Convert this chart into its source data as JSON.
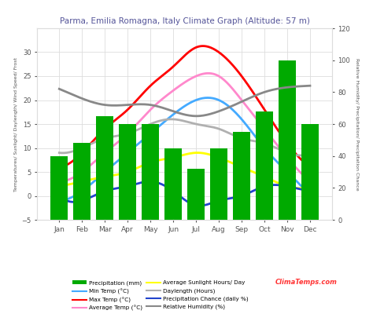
{
  "title": "Parma, Emilia Romagna, Italy Climate Graph (Altitude: 57 m)",
  "months": [
    "Jan",
    "Feb",
    "Mar",
    "Apr",
    "May",
    "Jun",
    "Jul",
    "Aug",
    "Sep",
    "Oct",
    "Nov",
    "Dec"
  ],
  "precipitation_mm": [
    40,
    48,
    65,
    60,
    60,
    45,
    32,
    45,
    55,
    68,
    100,
    60
  ],
  "max_temp": [
    6,
    9,
    14,
    18,
    23,
    27,
    31,
    30,
    25,
    18,
    11,
    6
  ],
  "min_temp": [
    -1,
    1,
    5,
    9,
    13,
    17,
    20,
    20,
    16,
    10,
    5,
    0
  ],
  "avg_temp": [
    3,
    5,
    9,
    13,
    18,
    22,
    25,
    25,
    20,
    14,
    8,
    3
  ],
  "avg_sunlight": [
    2,
    3,
    4,
    5,
    7,
    8,
    9,
    8,
    6,
    4,
    2,
    2
  ],
  "daylength": [
    9,
    10,
    12,
    13,
    15,
    16,
    15,
    14,
    12,
    11,
    9,
    9
  ],
  "precip_chance": [
    8,
    7,
    9,
    10,
    11,
    9,
    6,
    7,
    8,
    10,
    10,
    9
  ],
  "relative_humidity": [
    82,
    76,
    72,
    72,
    72,
    68,
    65,
    68,
    74,
    80,
    83,
    84
  ],
  "bar_color": "#00aa00",
  "max_temp_color": "#ff0000",
  "min_temp_color": "#44aaff",
  "avg_temp_color": "#ff88cc",
  "sunlight_color": "#ffff00",
  "daylength_color": "#b0b0b0",
  "precip_chance_color": "#2244cc",
  "humidity_color": "#888888",
  "title_color": "#555599",
  "bg_color": "#ffffff",
  "grid_color": "#dddddd",
  "ylim_left": [
    -5,
    35
  ],
  "ylim_right": [
    0,
    120
  ],
  "left_yticks": [
    -5,
    0,
    5,
    10,
    15,
    20,
    25,
    30
  ],
  "right_yticks": [
    0,
    20,
    40,
    60,
    80,
    100,
    120
  ]
}
